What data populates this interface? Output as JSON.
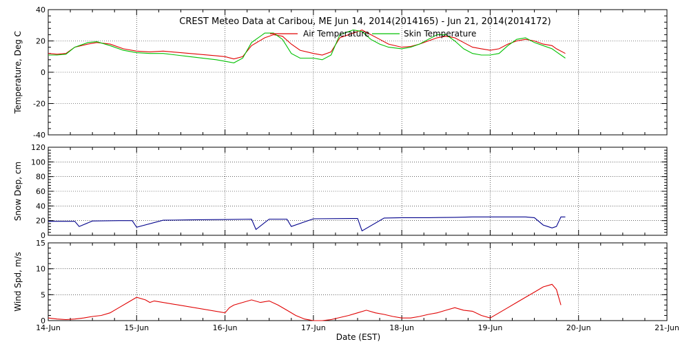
{
  "colors": {
    "air_temperature": "#e00000",
    "skin_temperature": "#00c000",
    "snow_depth": "#00008b",
    "wind_speed": "#e00000"
  },
  "chart_data": [
    {
      "type": "line",
      "title": "CREST Meteo Data at Caribou, ME   Jun 14, 2014(2014165) - Jun 21, 2014(2014172)",
      "xlabel": "",
      "ylabel": "Temperature, Deg C",
      "ylim": [
        -40,
        40
      ],
      "yticks": [
        "-40",
        "-20",
        "0",
        "20",
        "40"
      ],
      "xlim": [
        "2014-06-14",
        "2014-06-21"
      ],
      "grid": true,
      "legend": "top-center",
      "series": [
        {
          "name": "Air Temperature",
          "color": "#e00000",
          "x": [
            0,
            0.1,
            0.2,
            0.3,
            0.45,
            0.55,
            0.7,
            0.85,
            1.0,
            1.15,
            1.3,
            1.6,
            1.9,
            2.0,
            2.1,
            2.2,
            2.3,
            2.45,
            2.55,
            2.65,
            2.75,
            2.85,
            3.0,
            3.1,
            3.2,
            3.3,
            3.45,
            3.55,
            3.65,
            3.75,
            3.85,
            4.0,
            4.1,
            4.2,
            4.3,
            4.4,
            4.5,
            4.6,
            4.7,
            4.8,
            4.9,
            5.0,
            5.1,
            5.2,
            5.3,
            5.4,
            5.5,
            5.6,
            5.7,
            5.75,
            5.85
          ],
          "y": [
            12,
            11.5,
            12,
            16,
            18,
            19,
            18,
            15,
            13.5,
            13,
            13.5,
            12,
            10.5,
            10,
            8.5,
            10,
            17,
            22,
            24,
            23,
            18,
            14,
            12,
            11,
            13,
            22,
            25,
            27,
            24,
            21,
            18,
            16,
            16.5,
            18,
            20,
            22,
            23,
            22,
            19,
            16,
            15,
            14,
            15,
            18,
            20,
            21,
            20,
            18,
            17,
            15,
            12
          ]
        },
        {
          "name": "Skin Temperature",
          "color": "#00c000",
          "x": [
            0,
            0.1,
            0.2,
            0.3,
            0.45,
            0.55,
            0.7,
            0.85,
            1.0,
            1.15,
            1.3,
            1.6,
            1.9,
            2.0,
            2.1,
            2.2,
            2.3,
            2.45,
            2.55,
            2.65,
            2.75,
            2.85,
            3.0,
            3.1,
            3.2,
            3.3,
            3.45,
            3.55,
            3.65,
            3.75,
            3.85,
            4.0,
            4.1,
            4.2,
            4.3,
            4.4,
            4.5,
            4.6,
            4.7,
            4.8,
            4.9,
            5.0,
            5.1,
            5.2,
            5.3,
            5.4,
            5.5,
            5.6,
            5.7,
            5.75,
            5.85
          ],
          "y": [
            11,
            11,
            11.5,
            16,
            19,
            19.5,
            17,
            14,
            12.5,
            12,
            12,
            10,
            8,
            7,
            6,
            9,
            19,
            25,
            25,
            21,
            12,
            9,
            9,
            8,
            11,
            24,
            27,
            26,
            21,
            18,
            16,
            15,
            16,
            18,
            21,
            24,
            24,
            20,
            15,
            12,
            11,
            11,
            12,
            17,
            21,
            22,
            19,
            17,
            15,
            13,
            9
          ]
        }
      ]
    },
    {
      "type": "line",
      "title": "",
      "xlabel": "",
      "ylabel": "Snow Dep, cm",
      "ylim": [
        0,
        120
      ],
      "yticks": [
        "0",
        "20",
        "40",
        "60",
        "80",
        "100",
        "120"
      ],
      "xlim": [
        "2014-06-14",
        "2014-06-21"
      ],
      "grid": true,
      "series": [
        {
          "name": "",
          "color": "#00008b",
          "x": [
            0,
            0.15,
            0.3,
            0.35,
            0.5,
            0.8,
            0.95,
            1.0,
            1.3,
            1.6,
            2.0,
            2.3,
            2.35,
            2.5,
            2.7,
            2.75,
            3.0,
            3.5,
            3.55,
            3.8,
            4.0,
            4.3,
            4.6,
            4.8,
            5.0,
            5.2,
            5.4,
            5.5,
            5.6,
            5.65,
            5.7,
            5.75,
            5.8,
            5.85
          ],
          "y": [
            19,
            19,
            19,
            12,
            19.5,
            20,
            20,
            11,
            20.5,
            21,
            21.5,
            22,
            8,
            22,
            22,
            12,
            22.5,
            23,
            6,
            23.5,
            24,
            24,
            24.5,
            25,
            25,
            25,
            25,
            24,
            14,
            12,
            10,
            12,
            25,
            25
          ]
        }
      ]
    },
    {
      "type": "line",
      "title": "",
      "xlabel": "Date (EST)",
      "ylabel": "Wind Spd, m/s",
      "ylim": [
        0,
        15
      ],
      "yticks": [
        "0",
        "5",
        "10",
        "15"
      ],
      "xticks": [
        "14-Jun",
        "15-Jun",
        "16-Jun",
        "17-Jun",
        "18-Jun",
        "19-Jun",
        "20-Jun",
        "21-Jun"
      ],
      "xlim": [
        "2014-06-14",
        "2014-06-21"
      ],
      "grid": true,
      "series": [
        {
          "name": "",
          "color": "#e00000",
          "x": [
            0,
            0.1,
            0.2,
            0.3,
            0.4,
            0.5,
            0.6,
            0.7,
            0.8,
            0.9,
            1.0,
            1.1,
            1.15,
            1.2,
            2.0,
            2.05,
            2.1,
            2.2,
            2.3,
            2.4,
            2.5,
            2.6,
            2.7,
            2.8,
            2.9,
            3.0,
            3.1,
            3.2,
            3.3,
            3.4,
            3.5,
            3.6,
            3.7,
            3.8,
            3.9,
            4.0,
            4.1,
            4.2,
            4.3,
            4.4,
            4.5,
            4.6,
            4.7,
            4.8,
            4.9,
            5.0,
            5.1,
            5.2,
            5.3,
            5.4,
            5.5,
            5.6,
            5.7,
            5.75,
            5.8
          ],
          "y": [
            0.5,
            0.3,
            0.2,
            0.3,
            0.5,
            0.8,
            1.0,
            1.5,
            2.5,
            3.5,
            4.5,
            4.0,
            3.5,
            3.8,
            1.5,
            2.5,
            3.0,
            3.5,
            4.0,
            3.5,
            3.8,
            3.0,
            2.0,
            1.0,
            0.3,
            0,
            0,
            0.2,
            0.6,
            1.0,
            1.5,
            2.0,
            1.5,
            1.2,
            0.8,
            0.5,
            0.5,
            0.8,
            1.2,
            1.5,
            2.0,
            2.5,
            2.0,
            1.8,
            1.0,
            0.5,
            1.5,
            2.5,
            3.5,
            4.5,
            5.5,
            6.5,
            7.0,
            6.0,
            3.0
          ]
        }
      ]
    }
  ]
}
